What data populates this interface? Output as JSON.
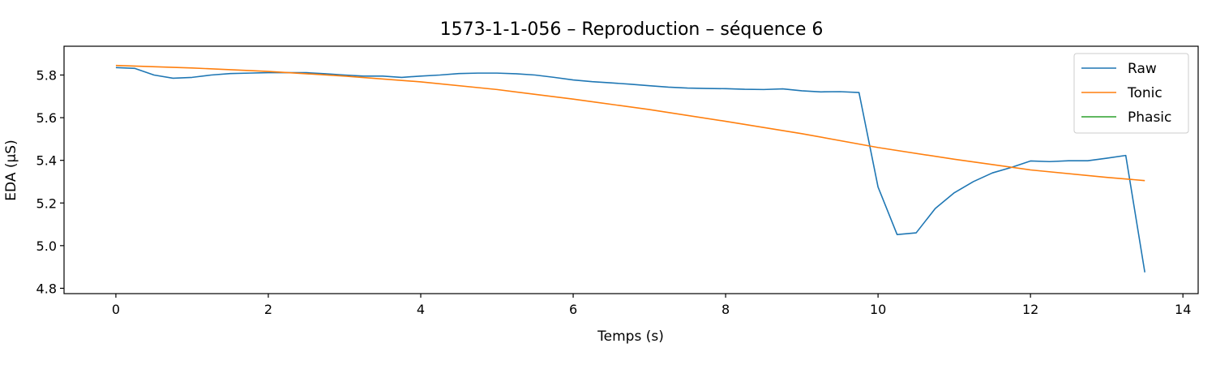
{
  "chart_data": {
    "type": "line",
    "title": "1573-1-1-056 – Reproduction – séquence 6",
    "xlabel": "Temps (s)",
    "ylabel": "EDA (µS)",
    "xlim": [
      -0.68,
      14.2
    ],
    "ylim": [
      4.775,
      5.935
    ],
    "xticks": [
      0,
      2,
      4,
      6,
      8,
      10,
      12,
      14
    ],
    "xtick_labels": [
      "0",
      "2",
      "4",
      "6",
      "8",
      "10",
      "12",
      "14"
    ],
    "yticks": [
      4.8,
      5.0,
      5.2,
      5.4,
      5.6,
      5.8
    ],
    "ytick_labels": [
      "4.8",
      "5.0",
      "5.2",
      "5.4",
      "5.6",
      "5.8"
    ],
    "grid": false,
    "legend_position": "top-right",
    "series": [
      {
        "name": "Raw",
        "color": "#1f77b4",
        "x": [
          0,
          0.25,
          0.5,
          0.75,
          1.0,
          1.25,
          1.5,
          1.75,
          2.0,
          2.25,
          2.5,
          2.75,
          3.0,
          3.25,
          3.5,
          3.75,
          4.0,
          4.25,
          4.5,
          4.75,
          5.0,
          5.25,
          5.5,
          5.75,
          6.0,
          6.25,
          6.5,
          6.75,
          7.0,
          7.25,
          7.5,
          7.75,
          8.0,
          8.25,
          8.5,
          8.75,
          9.0,
          9.25,
          9.5,
          9.75,
          10.0,
          10.25,
          10.5,
          10.75,
          11.0,
          11.25,
          11.5,
          11.75,
          12.0,
          12.25,
          12.5,
          12.75,
          13.0,
          13.25,
          13.5
        ],
        "y": [
          5.835,
          5.831,
          5.8,
          5.785,
          5.789,
          5.8,
          5.807,
          5.809,
          5.811,
          5.811,
          5.811,
          5.806,
          5.8,
          5.795,
          5.795,
          5.789,
          5.795,
          5.8,
          5.807,
          5.809,
          5.809,
          5.806,
          5.8,
          5.789,
          5.777,
          5.769,
          5.763,
          5.757,
          5.75,
          5.743,
          5.739,
          5.737,
          5.736,
          5.733,
          5.732,
          5.735,
          5.726,
          5.721,
          5.722,
          5.718,
          5.275,
          5.052,
          5.06,
          5.174,
          5.248,
          5.3,
          5.341,
          5.367,
          5.397,
          5.394,
          5.398,
          5.398,
          5.41,
          5.423,
          4.875
        ]
      },
      {
        "name": "Tonic",
        "color": "#ff7f0e",
        "x": [
          0,
          1,
          2,
          3,
          4,
          5,
          6,
          7,
          8,
          9,
          10,
          11,
          12,
          13,
          13.5
        ],
        "y": [
          5.845,
          5.833,
          5.817,
          5.795,
          5.768,
          5.732,
          5.687,
          5.638,
          5.583,
          5.525,
          5.46,
          5.405,
          5.355,
          5.32,
          5.305
        ]
      },
      {
        "name": "Phasic",
        "color": "#2ca02c",
        "x": [],
        "y": []
      }
    ]
  }
}
